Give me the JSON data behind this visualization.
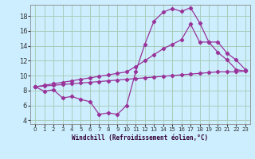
{
  "xlabel": "Windchill (Refroidissement éolien,°C)",
  "background_color": "#cceeff",
  "grid_color": "#aaccbb",
  "line_color": "#993399",
  "xlim": [
    -0.5,
    23.5
  ],
  "ylim": [
    3.5,
    19.5
  ],
  "xticks": [
    0,
    1,
    2,
    3,
    4,
    5,
    6,
    7,
    8,
    9,
    10,
    11,
    12,
    13,
    14,
    15,
    16,
    17,
    18,
    19,
    20,
    21,
    22,
    23
  ],
  "yticks": [
    4,
    6,
    8,
    10,
    12,
    14,
    16,
    18
  ],
  "curve1_x": [
    0,
    1,
    2,
    3,
    4,
    5,
    6,
    7,
    8,
    9,
    10,
    11,
    12,
    13,
    14,
    15,
    16,
    17,
    18,
    19,
    20,
    21,
    22,
    23
  ],
  "curve1_y": [
    8.5,
    7.9,
    8.1,
    7.0,
    7.2,
    6.8,
    6.5,
    4.8,
    5.0,
    4.8,
    6.0,
    10.5,
    14.2,
    17.3,
    18.5,
    19.0,
    18.6,
    19.1,
    17.1,
    14.5,
    13.1,
    12.1,
    10.8,
    10.6
  ],
  "curve2_x": [
    0,
    1,
    2,
    3,
    4,
    5,
    6,
    7,
    8,
    9,
    10,
    11,
    12,
    13,
    14,
    15,
    16,
    17,
    18,
    19,
    20,
    21,
    22,
    23
  ],
  "curve2_y": [
    8.5,
    8.6,
    8.7,
    8.8,
    8.9,
    9.0,
    9.1,
    9.2,
    9.3,
    9.4,
    9.5,
    9.6,
    9.7,
    9.8,
    9.9,
    10.0,
    10.1,
    10.2,
    10.3,
    10.4,
    10.5,
    10.5,
    10.5,
    10.6
  ],
  "curve3_x": [
    0,
    1,
    2,
    3,
    4,
    5,
    6,
    7,
    8,
    9,
    10,
    11,
    12,
    13,
    14,
    15,
    16,
    17,
    18,
    19,
    20,
    21,
    22,
    23
  ],
  "curve3_y": [
    8.5,
    8.7,
    8.9,
    9.1,
    9.3,
    9.5,
    9.7,
    9.9,
    10.1,
    10.3,
    10.5,
    11.2,
    12.0,
    12.8,
    13.6,
    14.2,
    14.8,
    16.9,
    14.5,
    14.5,
    14.5,
    13.0,
    12.1,
    10.8
  ]
}
